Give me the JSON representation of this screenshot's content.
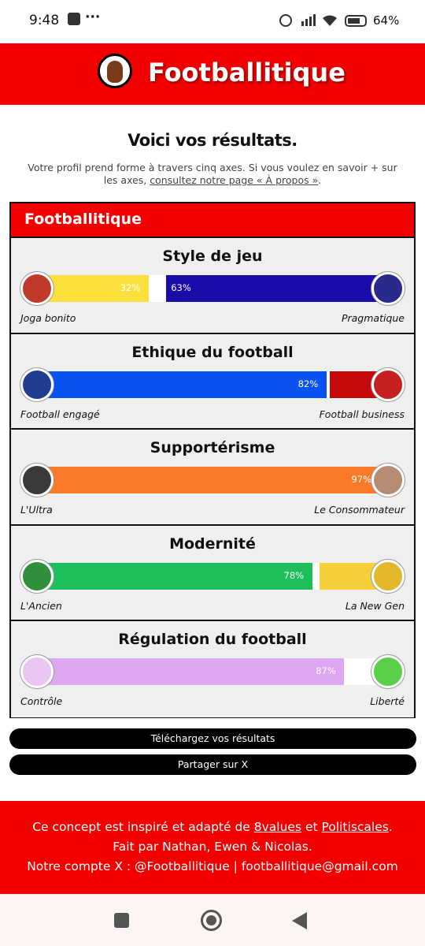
{
  "status_bar": {
    "time": "9:48",
    "battery": "64%"
  },
  "header": {
    "title": "Footballitique"
  },
  "results": {
    "title": "Voici vos résultats.",
    "intro": "Votre profil prend forme à travers cinq axes. Si vous voulez en savoir + sur les axes,",
    "intro_link": "consultez notre page « À propos »",
    "intro_end": ".",
    "card_title": "Footballitique",
    "axes": [
      {
        "title": "Style de jeu",
        "left_name": "Joga bonito",
        "right_name": "Pragmatique",
        "left": {
          "value": 32,
          "label": "32%",
          "color": "#fbe03c"
        },
        "right": {
          "value": 63,
          "label": "63%",
          "color": "#1a0ca8"
        },
        "left_icon": "#c0392b",
        "right_icon": "#2a2a8a"
      },
      {
        "title": "Ethique du football",
        "left_name": "Football engagé",
        "right_name": "Football business",
        "left": {
          "value": 82,
          "label": "82%",
          "color": "#0b52f2"
        },
        "right": {
          "value": 17,
          "color": "#c40a0a"
        },
        "left_icon": "#1f3c8f",
        "right_icon": "#c62020"
      },
      {
        "title": "Supportérisme",
        "left_name": "L'Ultra",
        "right_name": "Le Consommateur",
        "left": {
          "value": 97,
          "label": "97%",
          "color": "#fa7a2a"
        },
        "right": {
          "value": 3,
          "color": "#ffffff"
        },
        "left_icon": "#3a3a3a",
        "right_icon": "#b58c72"
      },
      {
        "title": "Modernité",
        "left_name": "L'Ancien",
        "right_name": "La New Gen",
        "left": {
          "value": 78,
          "label": "78%",
          "color": "#1dbf5a"
        },
        "right": {
          "value": 20,
          "color": "#f7cf3b"
        },
        "left_icon": "#2f8f3a",
        "right_icon": "#e2b72a"
      },
      {
        "title": "Régulation du football",
        "left_name": "Contrôle",
        "right_name": "Liberté",
        "left": {
          "value": 87,
          "label": "87%",
          "color": "#dea6ef"
        },
        "right": {
          "value": 13,
          "color": "#ffffff"
        },
        "left_icon": "#e8c5f2",
        "right_icon": "#5ccf4a"
      }
    ]
  },
  "buttons": {
    "download": "Téléchargez vos résultats",
    "share": "Partager sur X"
  },
  "footer": {
    "line1_start": "Ce concept est inspiré et adapté de",
    "link1": "8values",
    "and": "et",
    "link2": "Politiscales",
    "line1_end": ".",
    "line2": "Fait par Nathan, Ewen & Nicolas.",
    "line3": "Notre compte X : @Footballitique | footballitique@gmail.com"
  }
}
